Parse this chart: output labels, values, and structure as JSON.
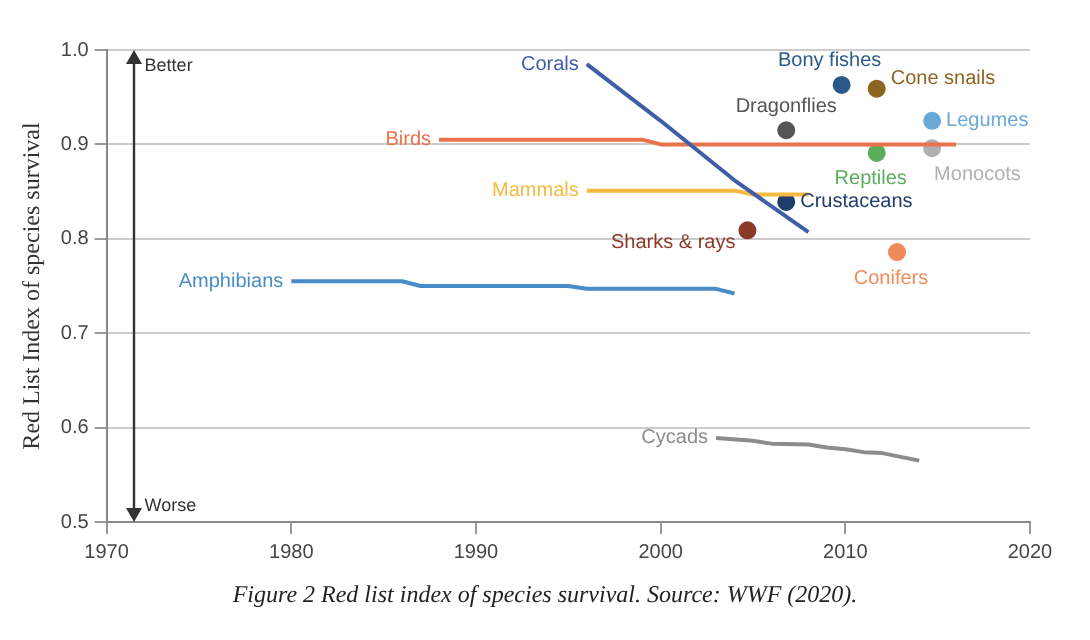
{
  "chart_data": {
    "type": "line",
    "ylabel": "Red List Index of species survival",
    "xlim": [
      1970,
      2020
    ],
    "xticks": [
      1970,
      1980,
      1990,
      2000,
      2010,
      2020
    ],
    "ylim": [
      0.5,
      1.0
    ],
    "yticks": [
      {
        "value": 0.5,
        "label": "0.5"
      },
      {
        "value": 0.6,
        "label": "0.6"
      },
      {
        "value": 0.7,
        "label": "0.7"
      },
      {
        "value": 0.8,
        "label": "0.8"
      },
      {
        "value": 0.9,
        "label": "0.9"
      },
      {
        "value": 1.0,
        "label": "1.0"
      }
    ],
    "grid": "y",
    "legend": false,
    "annotations": [
      "Better",
      "Worse",
      "Figure 2 Red list index of species survival. Source: WWF (2020)."
    ],
    "series": [
      {
        "name": "Corals",
        "color": "#3e5fa8",
        "x": [
          1996,
          2000,
          2004,
          2008
        ],
        "values": [
          0.985,
          0.925,
          0.862,
          0.807
        ]
      },
      {
        "name": "Birds",
        "color": "#e8734a",
        "x": [
          1988,
          1999,
          2000,
          2016
        ],
        "values": [
          0.905,
          0.905,
          0.9,
          0.9
        ]
      },
      {
        "name": "Mammals",
        "color": "#f5b942",
        "x": [
          1996,
          2004,
          2005,
          2008
        ],
        "values": [
          0.851,
          0.851,
          0.847,
          0.847
        ]
      },
      {
        "name": "Amphibians",
        "color": "#4a8cc8",
        "x": [
          1980,
          1986,
          1987,
          1995,
          1996,
          2003,
          2004
        ],
        "values": [
          0.755,
          0.755,
          0.75,
          0.75,
          0.747,
          0.747,
          0.742
        ]
      },
      {
        "name": "Cycads",
        "color": "#8c8c8c",
        "x": [
          2003,
          2005,
          2006,
          2008,
          2009,
          2010,
          2011,
          2012,
          2013,
          2014
        ],
        "values": [
          0.589,
          0.586,
          0.583,
          0.582,
          0.579,
          0.577,
          0.574,
          0.573,
          0.569,
          0.565
        ]
      },
      {
        "name": "Bony fishes",
        "type": "scatter",
        "marker": "circle",
        "color": "#2b5a8a",
        "x": [
          2009.8
        ],
        "values": [
          0.963
        ]
      },
      {
        "name": "Cone snails",
        "type": "scatter",
        "marker": "circle",
        "color": "#8b6420",
        "x": [
          2011.7
        ],
        "values": [
          0.959
        ]
      },
      {
        "name": "Dragonflies",
        "type": "scatter",
        "marker": "circle",
        "color": "#555555",
        "x": [
          2006.8
        ],
        "values": [
          0.915
        ]
      },
      {
        "name": "Legumes",
        "type": "scatter",
        "marker": "circle",
        "color": "#6aa8d8",
        "x": [
          2014.7
        ],
        "values": [
          0.925
        ]
      },
      {
        "name": "Monocots",
        "type": "scatter",
        "marker": "circle",
        "color": "#b0b0b0",
        "x": [
          2014.7
        ],
        "values": [
          0.896
        ]
      },
      {
        "name": "Reptiles",
        "type": "scatter",
        "marker": "circle",
        "color": "#5aad5a",
        "x": [
          2011.7
        ],
        "values": [
          0.891
        ]
      },
      {
        "name": "Crustaceans",
        "type": "scatter",
        "marker": "circle",
        "color": "#1f3d6b",
        "x": [
          2006.8
        ],
        "values": [
          0.839
        ]
      },
      {
        "name": "Sharks & rays",
        "type": "scatter",
        "marker": "circle",
        "color": "#8b3a2a",
        "x": [
          2004.7
        ],
        "values": [
          0.809
        ]
      },
      {
        "name": "Conifers",
        "type": "scatter",
        "marker": "circle",
        "color": "#f08a5a",
        "x": [
          2012.8
        ],
        "values": [
          0.786
        ]
      }
    ]
  }
}
